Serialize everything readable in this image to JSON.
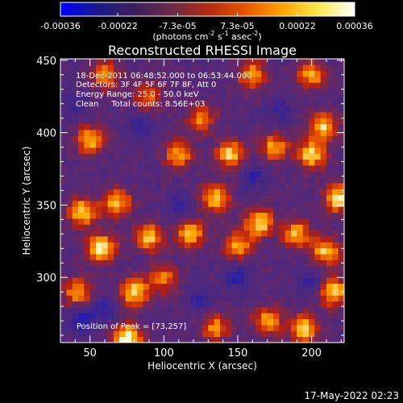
{
  "colorbar": {
    "ticks": [
      "-0.00036",
      "-0.00022",
      "-7.3e-05",
      "7.3e-05",
      "0.00022",
      "0.00036"
    ],
    "tick_values": [
      -0.00036,
      -0.00022,
      -7.3e-05,
      7.3e-05,
      0.00022,
      0.00036
    ],
    "range": [
      -0.00036,
      0.00036
    ],
    "units_main": "(photons cm",
    "units_sup1": "-2",
    "units_mid": " s",
    "units_sup2": "-1",
    "units_mid2": " asec",
    "units_sup3": "-2",
    "units_end": ")",
    "stops": [
      "#0000ff",
      "#1a1a8c",
      "#3c1f5e",
      "#6a2a4a",
      "#b02a10",
      "#e65400",
      "#ffa000",
      "#ffe84a",
      "#ffffff"
    ]
  },
  "chart_data": {
    "type": "heatmap",
    "title": "Reconstructed RHESSI Image",
    "xlabel": "Heliocentric X (arcsec)",
    "ylabel": "Heliocentric Y (arcsec)",
    "xlim": [
      30,
      222
    ],
    "ylim": [
      255,
      451
    ],
    "x_ticks": [
      50,
      100,
      150,
      200
    ],
    "y_ticks": [
      300,
      350,
      400,
      450
    ],
    "peak": [
      73,
      257
    ],
    "annotations": [
      "18-Dec-2011 06:48:52.000 to 06:53:44.000",
      "Detectors: 3F 4F 5F 6F 7F 8F, Att 0",
      "Energy Range: 25.0 - 50.0 keV",
      "Clean     Total counts: 8.56E+03"
    ],
    "peak_label": "Position of Peak = [73,257]",
    "hot_spots": [
      {
        "x": 58,
        "y": 320,
        "v": 0.95
      },
      {
        "x": 45,
        "y": 345,
        "v": 0.85
      },
      {
        "x": 68,
        "y": 352,
        "v": 0.8
      },
      {
        "x": 42,
        "y": 290,
        "v": 0.7
      },
      {
        "x": 90,
        "y": 328,
        "v": 0.75
      },
      {
        "x": 80,
        "y": 290,
        "v": 0.85
      },
      {
        "x": 75,
        "y": 258,
        "v": 1.0
      },
      {
        "x": 118,
        "y": 330,
        "v": 0.75
      },
      {
        "x": 135,
        "y": 355,
        "v": 0.8
      },
      {
        "x": 165,
        "y": 338,
        "v": 0.85
      },
      {
        "x": 150,
        "y": 322,
        "v": 0.7
      },
      {
        "x": 190,
        "y": 330,
        "v": 0.75
      },
      {
        "x": 218,
        "y": 355,
        "v": 0.9
      },
      {
        "x": 210,
        "y": 318,
        "v": 0.8
      },
      {
        "x": 215,
        "y": 290,
        "v": 0.85
      },
      {
        "x": 195,
        "y": 265,
        "v": 0.85
      },
      {
        "x": 170,
        "y": 270,
        "v": 0.7
      },
      {
        "x": 135,
        "y": 265,
        "v": 0.65
      },
      {
        "x": 145,
        "y": 385,
        "v": 0.8
      },
      {
        "x": 175,
        "y": 390,
        "v": 0.7
      },
      {
        "x": 110,
        "y": 385,
        "v": 0.7
      },
      {
        "x": 50,
        "y": 395,
        "v": 0.75
      },
      {
        "x": 200,
        "y": 385,
        "v": 0.85
      },
      {
        "x": 208,
        "y": 405,
        "v": 0.8
      },
      {
        "x": 125,
        "y": 410,
        "v": 0.6
      },
      {
        "x": 90,
        "y": 425,
        "v": 0.55
      },
      {
        "x": 160,
        "y": 440,
        "v": 0.7
      },
      {
        "x": 200,
        "y": 440,
        "v": 0.7
      },
      {
        "x": 60,
        "y": 440,
        "v": 0.65
      },
      {
        "x": 100,
        "y": 300,
        "v": 0.6
      }
    ],
    "cold_spots": [
      {
        "x": 45,
        "y": 270,
        "v": 0.9
      },
      {
        "x": 60,
        "y": 278,
        "v": 0.7
      },
      {
        "x": 150,
        "y": 300,
        "v": 0.8
      },
      {
        "x": 200,
        "y": 297,
        "v": 0.7
      },
      {
        "x": 160,
        "y": 370,
        "v": 0.7
      },
      {
        "x": 110,
        "y": 350,
        "v": 0.6
      },
      {
        "x": 125,
        "y": 285,
        "v": 0.6
      },
      {
        "x": 85,
        "y": 405,
        "v": 0.6
      },
      {
        "x": 180,
        "y": 415,
        "v": 0.55
      },
      {
        "x": 40,
        "y": 420,
        "v": 0.5
      }
    ]
  },
  "footer": {
    "timestamp": "17-May-2022 02:23"
  }
}
